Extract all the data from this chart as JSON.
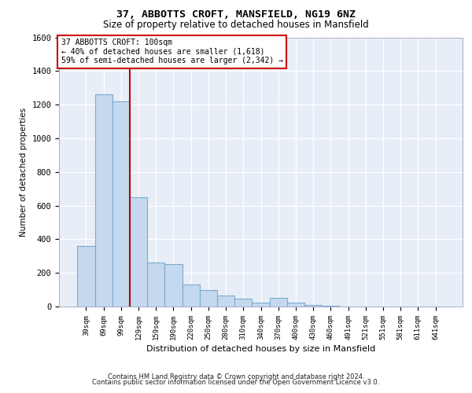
{
  "title1": "37, ABBOTTS CROFT, MANSFIELD, NG19 6NZ",
  "title2": "Size of property relative to detached houses in Mansfield",
  "xlabel": "Distribution of detached houses by size in Mansfield",
  "ylabel": "Number of detached properties",
  "footer1": "Contains HM Land Registry data © Crown copyright and database right 2024.",
  "footer2": "Contains public sector information licensed under the Open Government Licence v3.0.",
  "annotation_title": "37 ABBOTTS CROFT: 100sqm",
  "annotation_line1": "← 40% of detached houses are smaller (1,618)",
  "annotation_line2": "59% of semi-detached houses are larger (2,342) →",
  "bar_labels": [
    "39sqm",
    "69sqm",
    "99sqm",
    "129sqm",
    "159sqm",
    "190sqm",
    "220sqm",
    "250sqm",
    "280sqm",
    "310sqm",
    "340sqm",
    "370sqm",
    "400sqm",
    "430sqm",
    "460sqm",
    "491sqm",
    "521sqm",
    "551sqm",
    "581sqm",
    "611sqm",
    "641sqm"
  ],
  "bar_values": [
    360,
    1260,
    1220,
    650,
    260,
    250,
    130,
    100,
    65,
    45,
    25,
    50,
    25,
    10,
    4,
    2,
    1,
    1,
    1,
    1,
    1
  ],
  "bar_color": "#c5d9ee",
  "bar_edge_color": "#7aabcf",
  "vline_x": 2.5,
  "vline_color": "#bb0000",
  "ylim": [
    0,
    1600
  ],
  "yticks": [
    0,
    200,
    400,
    600,
    800,
    1000,
    1200,
    1400,
    1600
  ],
  "annotation_box_edge": "#cc0000",
  "plot_bg_color": "#e8eef7",
  "grid_color": "#d0d8e8",
  "fig_width": 6.0,
  "fig_height": 5.0,
  "dpi": 100
}
